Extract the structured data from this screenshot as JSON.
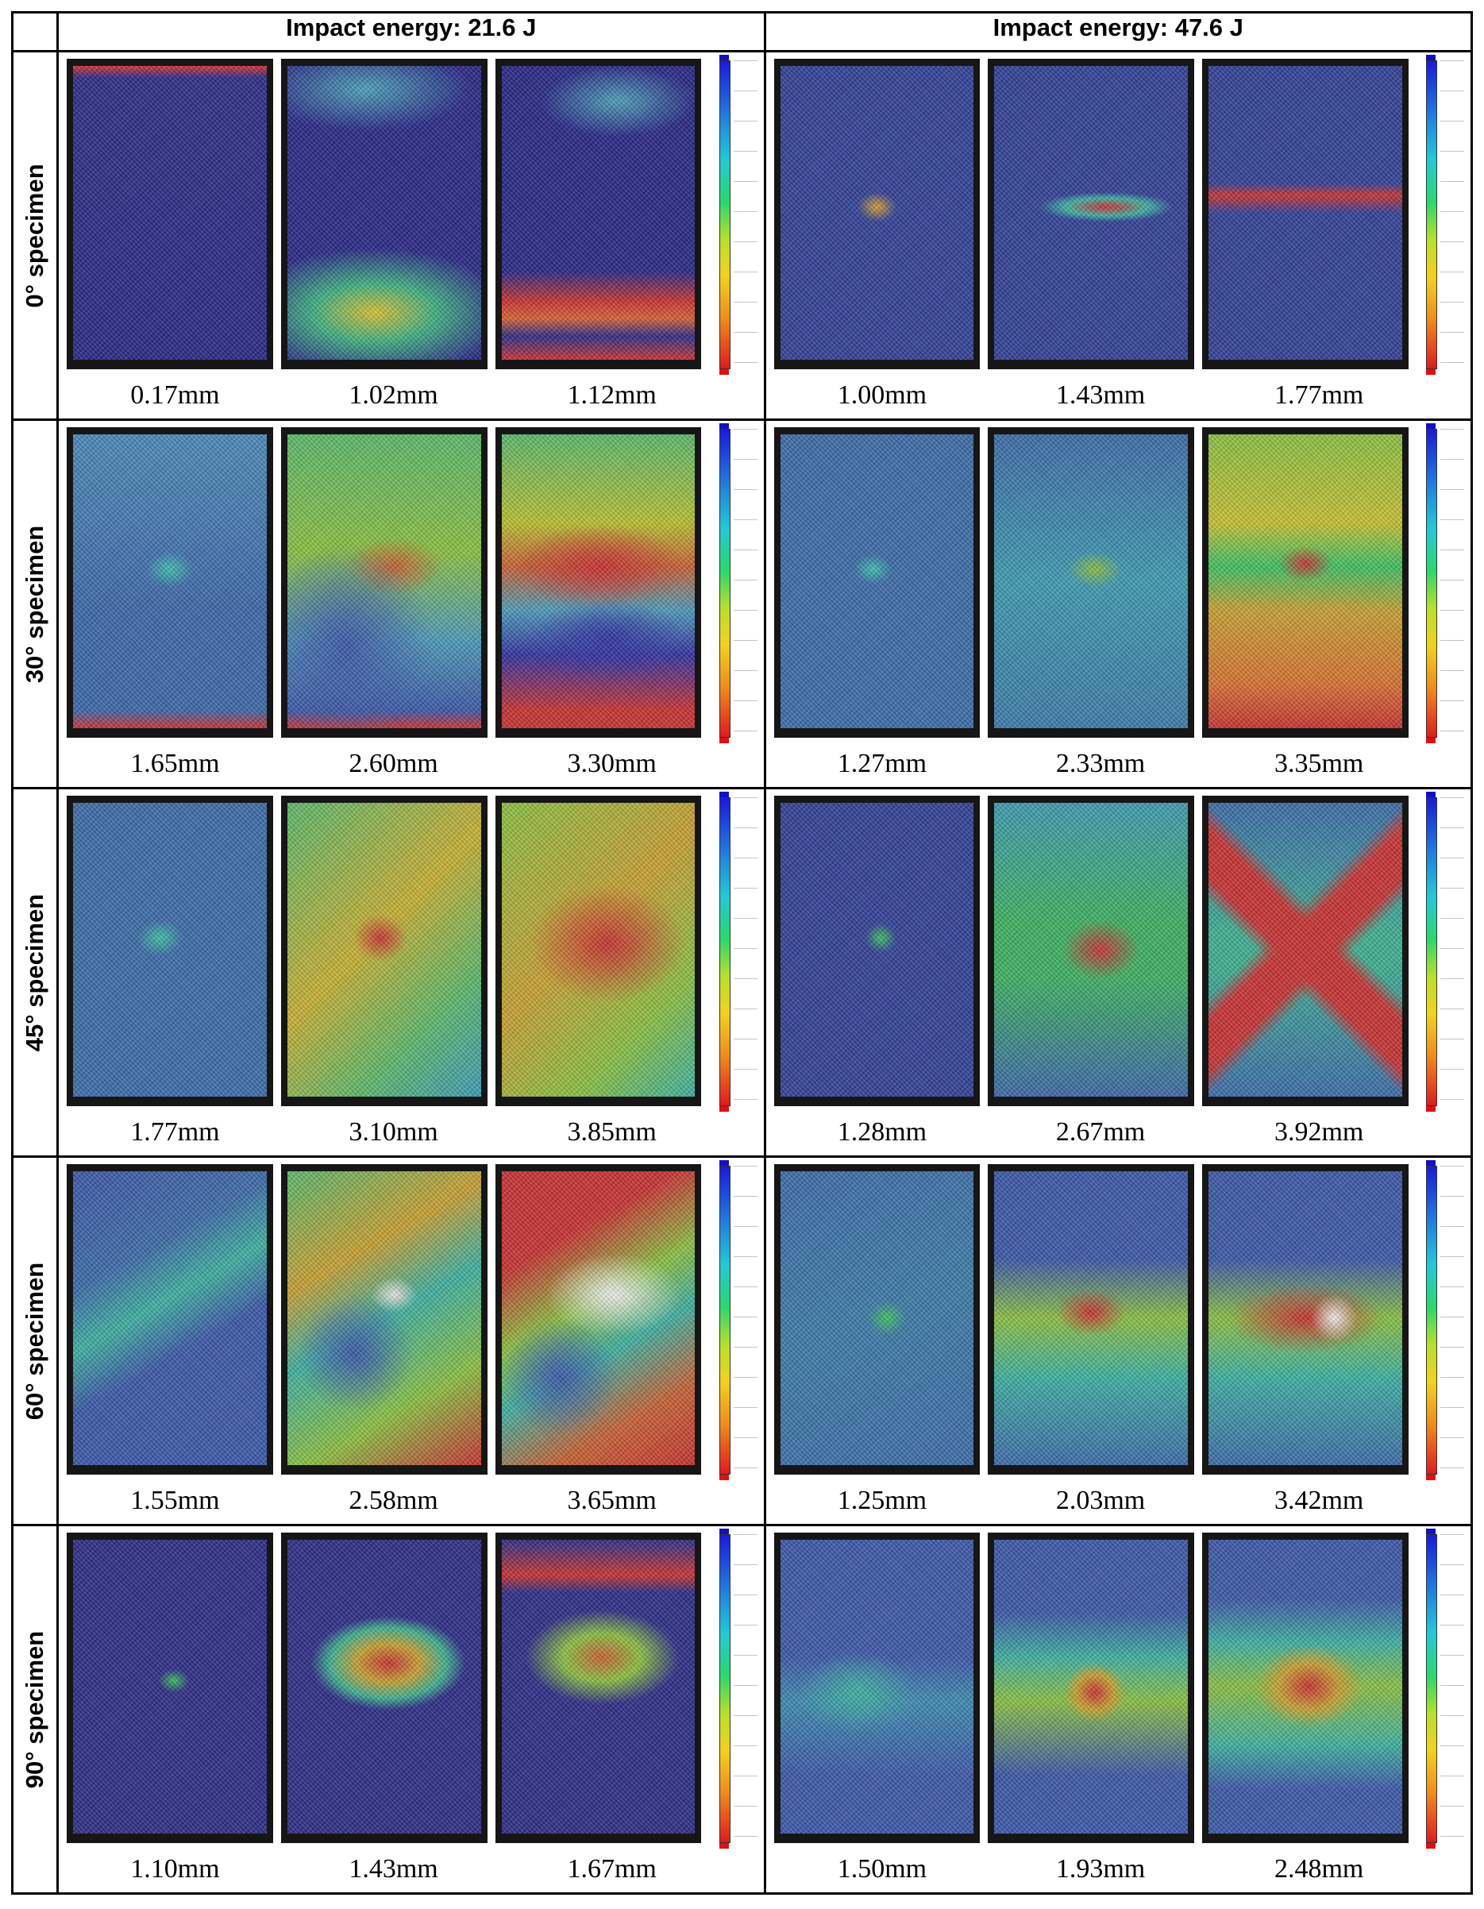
{
  "columns": [
    "Impact energy: 21.6 J",
    "Impact energy: 47.6 J"
  ],
  "rows": [
    {
      "label": "0° specimen",
      "cells": [
        [
          "0.17mm",
          "1.02mm",
          "1.12mm"
        ],
        [
          "1.00mm",
          "1.43mm",
          "1.77mm"
        ]
      ]
    },
    {
      "label": "30° specimen",
      "cells": [
        [
          "1.65mm",
          "2.60mm",
          "3.30mm"
        ],
        [
          "1.27mm",
          "2.33mm",
          "3.35mm"
        ]
      ]
    },
    {
      "label": "45° specimen",
      "cells": [
        [
          "1.77mm",
          "3.10mm",
          "3.85mm"
        ],
        [
          "1.28mm",
          "2.67mm",
          "3.92mm"
        ]
      ]
    },
    {
      "label": "60° specimen",
      "cells": [
        [
          "1.55mm",
          "2.58mm",
          "3.65mm"
        ],
        [
          "1.25mm",
          "2.03mm",
          "3.42mm"
        ]
      ]
    },
    {
      "label": "90° specimen",
      "cells": [
        [
          "1.10mm",
          "1.43mm",
          "1.67mm"
        ],
        [
          "1.50mm",
          "1.93mm",
          "2.48mm"
        ]
      ]
    }
  ]
}
